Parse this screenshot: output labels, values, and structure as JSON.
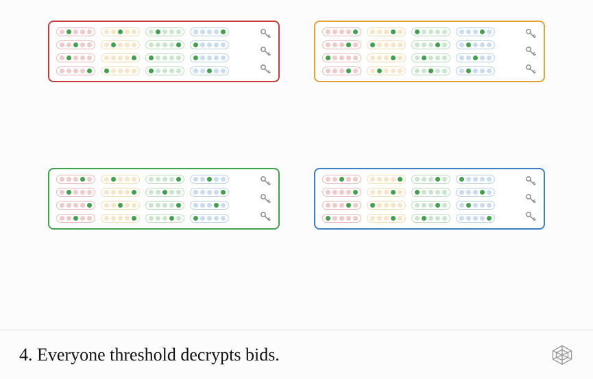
{
  "caption": "4. Everyone threshold decrypts bids.",
  "colors": {
    "red": "#c63a3a",
    "orange": "#e2a236",
    "green": "#3fa24a",
    "blue": "#3f7fc6",
    "key": "#a9a9a9",
    "key_stroke": "#8a8a8a",
    "logo": "#999999",
    "caption_divider": "#d8d8d8"
  },
  "faded_alpha": 0.28,
  "highlight_alpha": 1.0,
  "panels": [
    {
      "border": "red"
    },
    {
      "border": "orange"
    },
    {
      "border": "green"
    },
    {
      "border": "blue"
    }
  ],
  "pill_col_order": [
    "red",
    "orange",
    "green",
    "blue"
  ],
  "rows_per_col": 4,
  "dots_per_pill": 5,
  "highlighted_dot_pattern": [
    [
      1,
      4,
      3,
      2,
      0
    ],
    [
      0,
      2,
      3,
      1,
      4
    ],
    [
      3,
      2,
      1,
      0,
      4
    ],
    [
      2,
      0,
      1,
      4,
      3
    ]
  ],
  "keys_per_panel": 3
}
